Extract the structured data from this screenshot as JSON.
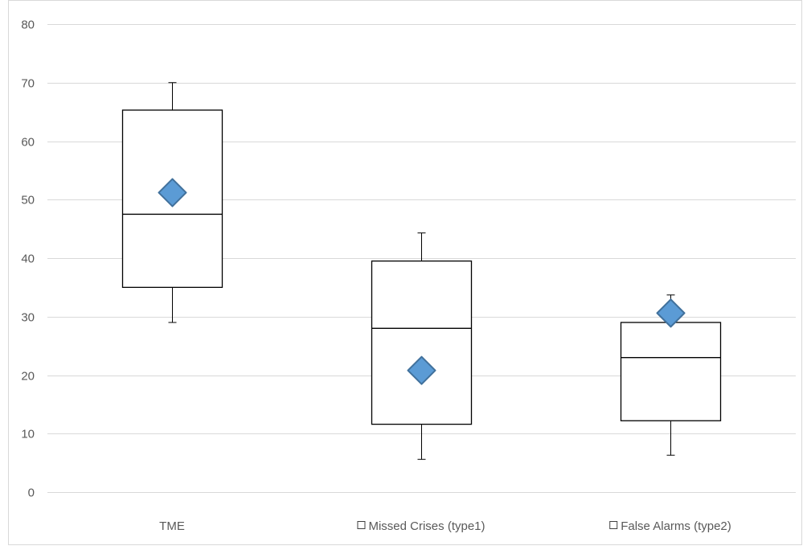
{
  "chart_data": {
    "type": "box",
    "title": "",
    "xlabel": "",
    "ylabel": "",
    "ylim": [
      0,
      80
    ],
    "yticks": [
      0,
      10,
      20,
      30,
      40,
      50,
      60,
      70,
      80
    ],
    "grid": true,
    "categories": [
      "TME",
      "Missed Crises (type1)",
      "False Alarms (type2)"
    ],
    "series": [
      {
        "whisker_low": 29,
        "q1": 35,
        "median": 47.5,
        "q3": 65.3,
        "whisker_high": 70,
        "mean": 51.2
      },
      {
        "whisker_low": 5.6,
        "q1": 11.6,
        "median": 28,
        "q3": 39.5,
        "whisker_high": 44.3,
        "mean": 20.8
      },
      {
        "whisker_low": 6.3,
        "q1": 12.2,
        "median": 23,
        "q3": 29,
        "whisker_high": 33.7,
        "mean": 30.6
      }
    ],
    "category_marker": [
      false,
      true,
      true
    ],
    "colors": {
      "box_stroke": "#000000",
      "box_fill": "#ffffff",
      "mean_fill": "#5b9bd5",
      "mean_stroke": "#41719c",
      "grid": "#d9d9d9",
      "axis_text": "#595959",
      "frame": "#d9d9d9"
    }
  }
}
